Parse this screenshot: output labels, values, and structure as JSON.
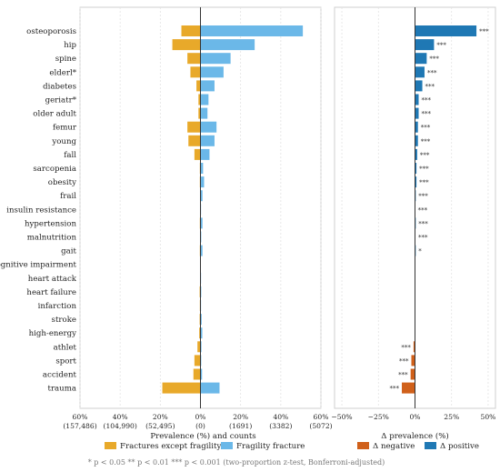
{
  "chart_data": [
    {
      "type": "bar",
      "orientation": "horizontal",
      "subtype": "diverging",
      "categories": [
        "osteoporosis",
        "hip",
        "spine",
        "elderl*",
        "diabetes",
        "geriatr*",
        "older adult",
        "femur",
        "young",
        "fall",
        "sarcopenia",
        "obesity",
        "frail",
        "insulin resistance",
        "hypertension",
        "malnutrition",
        "gait",
        "cognitive impairment",
        "heart attack",
        "heart failure",
        "infarction",
        "stroke",
        "high-energy",
        "athlet",
        "sport",
        "accident",
        "trauma"
      ],
      "series": [
        {
          "name": "Fractures except fragility",
          "color": "#e8a92a",
          "values": [
            9.5,
            14,
            6.5,
            5,
            2,
            1,
            1,
            6.5,
            6,
            3,
            0.3,
            0.3,
            0.2,
            0.2,
            0.3,
            0.2,
            0.3,
            0.1,
            0.2,
            0.4,
            0.3,
            0.4,
            0.6,
            1.5,
            3,
            3.5,
            19
          ]
        },
        {
          "name": "Fragility fracture",
          "color": "#6bb8e8",
          "values": [
            51,
            27,
            15,
            11.5,
            7,
            4,
            3.5,
            8,
            7,
            4.5,
            1.3,
            1.8,
            1,
            0.3,
            1,
            0.4,
            1,
            0.2,
            0.3,
            0.4,
            0.3,
            0.6,
            0.9,
            0.5,
            0.4,
            0.8,
            9.5
          ]
        }
      ],
      "xlabel": "Prevalence (%) and  counts",
      "xticks": [
        {
          "v": -60,
          "pct": "60%",
          "count": "(157,486)"
        },
        {
          "v": -40,
          "pct": "40%",
          "count": "(104,990)"
        },
        {
          "v": -20,
          "pct": "20%",
          "count": "(52,495)"
        },
        {
          "v": 0,
          "pct": "0%",
          "count": "(0)"
        },
        {
          "v": 20,
          "pct": "20%",
          "count": "(1691)"
        },
        {
          "v": 40,
          "pct": "40%",
          "count": "(3382)"
        },
        {
          "v": 60,
          "pct": "60%",
          "count": "(5072)"
        }
      ],
      "xlim": [
        -60,
        60
      ],
      "grid": "vertical"
    },
    {
      "type": "bar",
      "orientation": "horizontal",
      "values": [
        42,
        13,
        8,
        6.5,
        5,
        2.5,
        2.5,
        2,
        2,
        1.5,
        1,
        1,
        0.5,
        0.1,
        0.5,
        0.3,
        0.5,
        0,
        0,
        0,
        0,
        0.1,
        0.2,
        -1,
        -2.5,
        -3,
        -9
      ],
      "significance": [
        "***",
        "***",
        "***",
        "***",
        "***",
        "***",
        "***",
        "***",
        "***",
        "***",
        "***",
        "***",
        "***",
        "***",
        "***",
        "***",
        "*",
        "",
        "",
        "",
        "",
        "",
        "",
        "***",
        "***",
        "***",
        "***"
      ],
      "xlabel": "Δ prevalence (%)",
      "xticks": [
        {
          "v": -50,
          "label": "−50%"
        },
        {
          "v": -25,
          "label": "−25%"
        },
        {
          "v": 0,
          "label": "0%"
        },
        {
          "v": 25,
          "label": "25%"
        },
        {
          "v": 50,
          "label": "50%"
        }
      ],
      "xlim": [
        -55,
        55
      ],
      "colors": {
        "negative": "#d0601a",
        "positive": "#1f78b4"
      },
      "grid": "vertical"
    }
  ],
  "legend": {
    "left": [
      {
        "label": "Fractures except fragility",
        "color": "#e8a92a"
      },
      {
        "label": "Fragility fracture",
        "color": "#6bb8e8"
      }
    ],
    "right": [
      {
        "label": "Δ negative",
        "color": "#d0601a"
      },
      {
        "label": "Δ positive",
        "color": "#1f78b4"
      }
    ]
  },
  "footnote": "* p < 0.05   ** p < 0.01   *** p < 0.001  (two-proportion z-test, Bonferroni-adjusted)"
}
